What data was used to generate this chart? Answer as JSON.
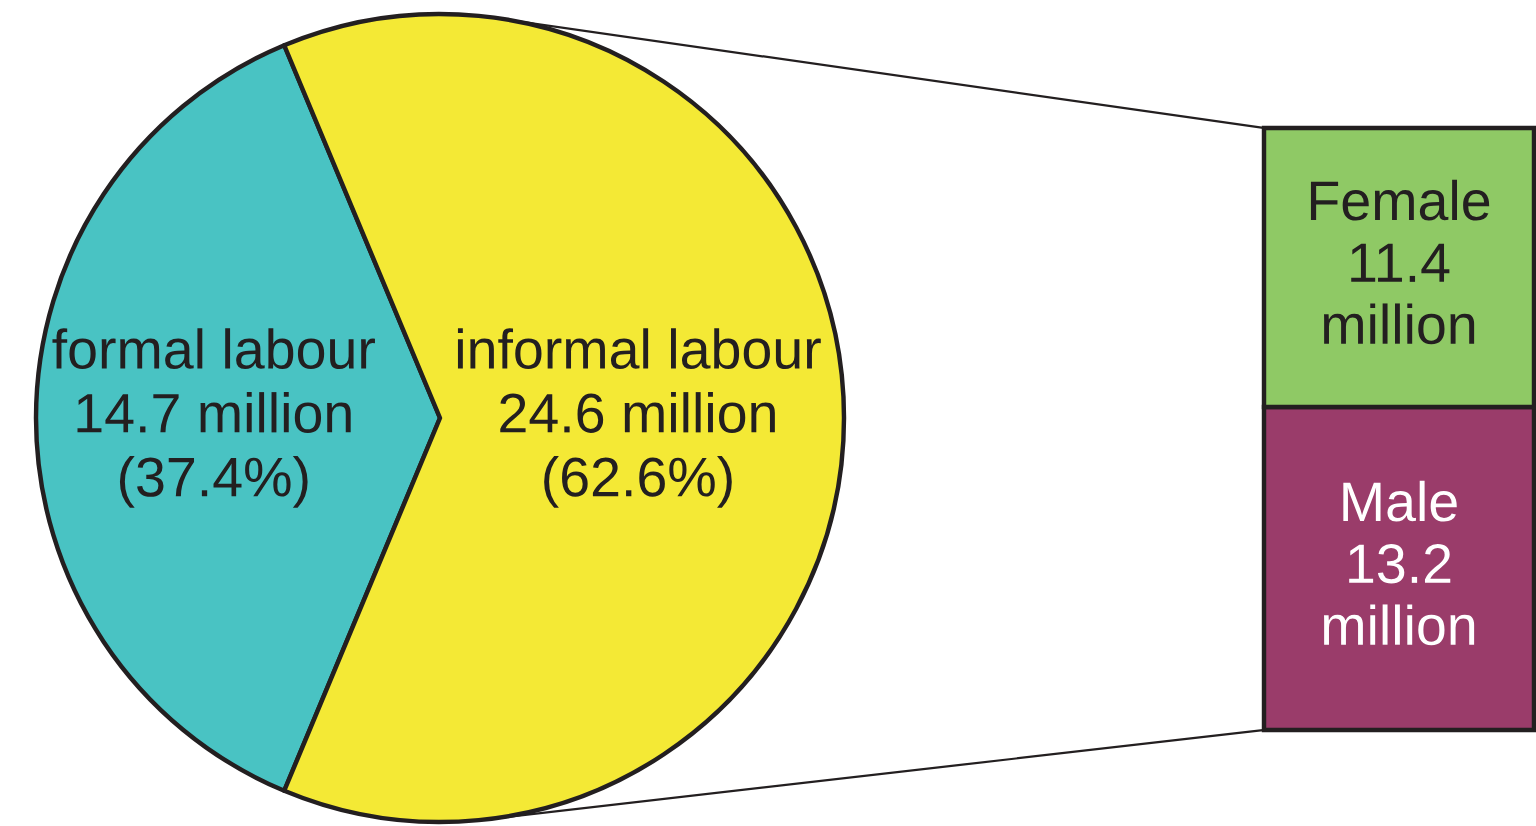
{
  "chart_data": [
    {
      "type": "pie",
      "categories": [
        "formal labour",
        "informal labour"
      ],
      "values": [
        37.4,
        62.6
      ],
      "value_labels": [
        "14.7 million\n(37.4%)",
        "24.6 million\n(62.6%)"
      ],
      "colors": [
        "#49c3c3",
        "#f4e935"
      ]
    },
    {
      "type": "bar",
      "stacked": true,
      "categories": [
        null
      ],
      "series": [
        {
          "name": "Male",
          "color": "#9a3c6a",
          "values": [
            13200000
          ],
          "value_labels": [
            "13.2\nmillion"
          ]
        },
        {
          "name": "Female",
          "color": "#8fc965",
          "values": [
            11400000
          ],
          "value_labels": [
            "11.4\nmillion"
          ]
        }
      ]
    }
  ]
}
